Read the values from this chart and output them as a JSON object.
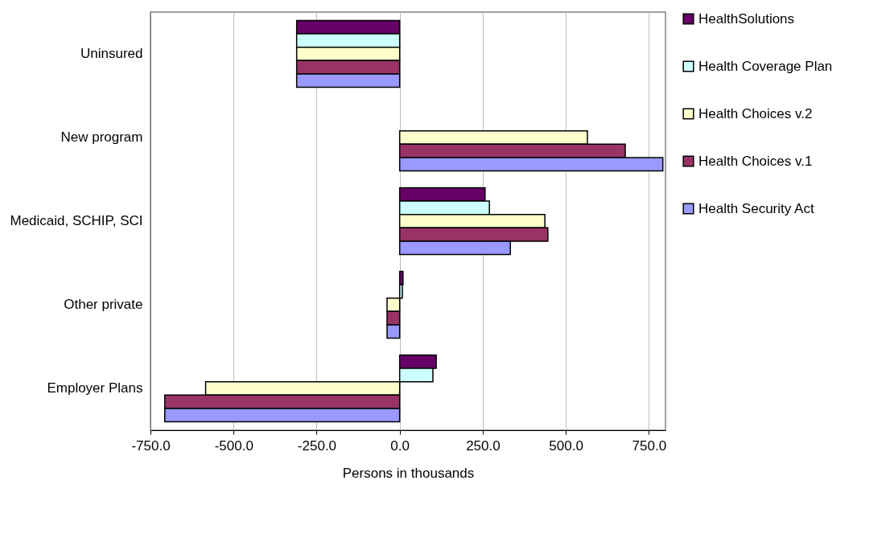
{
  "chart_data": {
    "type": "bar",
    "orientation": "horizontal",
    "xlabel": "Persons in thousands",
    "categories": [
      "Uninsured",
      "New program",
      "Medicaid, SCHIP, SCI",
      "Other private",
      "Employer Plans"
    ],
    "series": [
      {
        "name": "HealthSolutions",
        "color": "#660066",
        "values": [
          -310,
          null,
          257,
          10,
          110
        ]
      },
      {
        "name": "Health Coverage Plan",
        "color": "#ccffff",
        "values": [
          -310,
          null,
          270,
          8,
          100
        ]
      },
      {
        "name": "Health Choices v.2",
        "color": "#ffffcc",
        "values": [
          -310,
          565,
          437,
          -38,
          -584
        ]
      },
      {
        "name": "Health Choices v.1",
        "color": "#993366",
        "values": [
          -310,
          679,
          446,
          -38,
          -707
        ]
      },
      {
        "name": "Health Security Act",
        "color": "#9999ff",
        "values": [
          -310,
          792,
          333,
          -38,
          -707
        ]
      }
    ],
    "xlim": [
      -750,
      800
    ],
    "xticks": [
      {
        "value": -750,
        "label": "-750.0"
      },
      {
        "value": -500,
        "label": "-500.0"
      },
      {
        "value": -250,
        "label": "-250.0"
      },
      {
        "value": 0,
        "label": "0.0"
      },
      {
        "value": 250,
        "label": "250.0"
      },
      {
        "value": 500,
        "label": "500.0"
      },
      {
        "value": 750,
        "label": "750.0"
      }
    ],
    "grid": "x",
    "legend": "right"
  }
}
